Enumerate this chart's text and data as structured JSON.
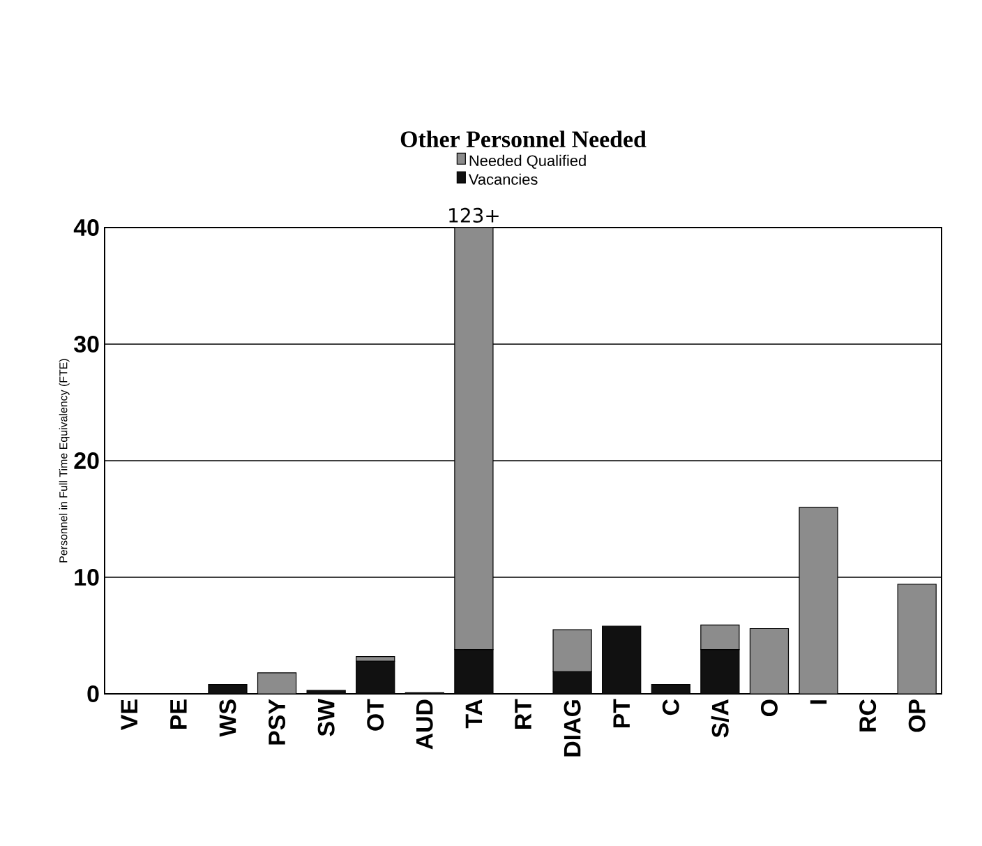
{
  "chart_data": {
    "type": "bar",
    "title": "Other Personnel Needed",
    "ylabel": "Personnel in Full Time Equivalency (FTE)",
    "categories": [
      "VE",
      "PE",
      "WS",
      "PSY",
      "SW",
      "OT",
      "AUD",
      "TA",
      "RT",
      "DIAG",
      "PT",
      "C",
      "S/A",
      "O",
      "I",
      "RC",
      "OP"
    ],
    "stacked": true,
    "series": [
      {
        "name": "Vacancies",
        "color": "#111111",
        "values": [
          0,
          0,
          0.8,
          0,
          0.3,
          2.8,
          0.1,
          3.8,
          0,
          1.9,
          5.8,
          0.8,
          3.8,
          0,
          0,
          0,
          0
        ]
      },
      {
        "name": "Needed Qualified",
        "color": "#8c8c8c",
        "values": [
          0,
          0,
          0,
          1.8,
          0,
          0.4,
          0,
          36.2,
          0,
          3.6,
          0,
          0,
          2.1,
          5.6,
          16.0,
          0,
          9.4
        ]
      }
    ],
    "ylim": [
      0,
      40
    ],
    "yticks": [
      0,
      10,
      20,
      30,
      40
    ],
    "grid": "y",
    "legend": "top",
    "annotations": [
      {
        "text": "123+",
        "x": "TA",
        "y": 40
      }
    ]
  }
}
